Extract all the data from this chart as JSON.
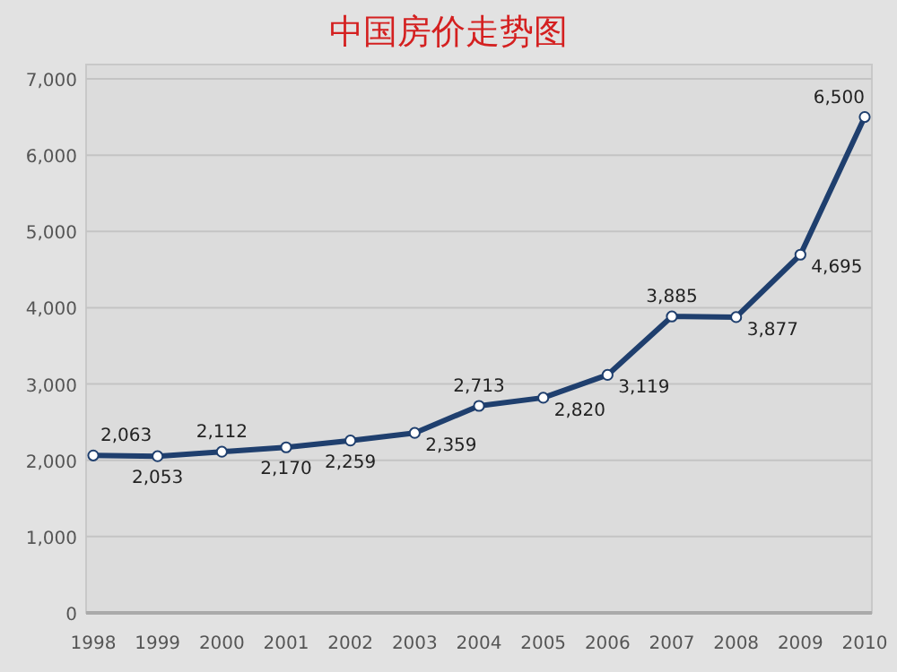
{
  "chart_data": {
    "type": "line",
    "title": "中国房价走势图",
    "categories": [
      "1998",
      "1999",
      "2000",
      "2001",
      "2002",
      "2003",
      "2004",
      "2005",
      "2006",
      "2007",
      "2008",
      "2009",
      "2010"
    ],
    "values": [
      2063,
      2053,
      2112,
      2170,
      2259,
      2359,
      2713,
      2820,
      3119,
      3885,
      3877,
      4695,
      6500
    ],
    "value_labels": [
      "2,063",
      "2,053",
      "2,112",
      "2,170",
      "2,259",
      "2,359",
      "2,713",
      "2,820",
      "3,119",
      "3,885",
      "3,877",
      "4,695",
      "6,500"
    ],
    "color": "#1f3f6e",
    "marker": "circle",
    "grid": "y",
    "ylim": [
      0,
      7000
    ],
    "yticks": [
      {
        "value": 0,
        "label": "0"
      },
      {
        "value": 1000,
        "label": "1,000"
      },
      {
        "value": 2000,
        "label": "2,000"
      },
      {
        "value": 3000,
        "label": "3,000"
      },
      {
        "value": 4000,
        "label": "4,000"
      },
      {
        "value": 5000,
        "label": "5,000"
      },
      {
        "value": 6000,
        "label": "6,000"
      },
      {
        "value": 7000,
        "label": "7,000"
      }
    ]
  }
}
